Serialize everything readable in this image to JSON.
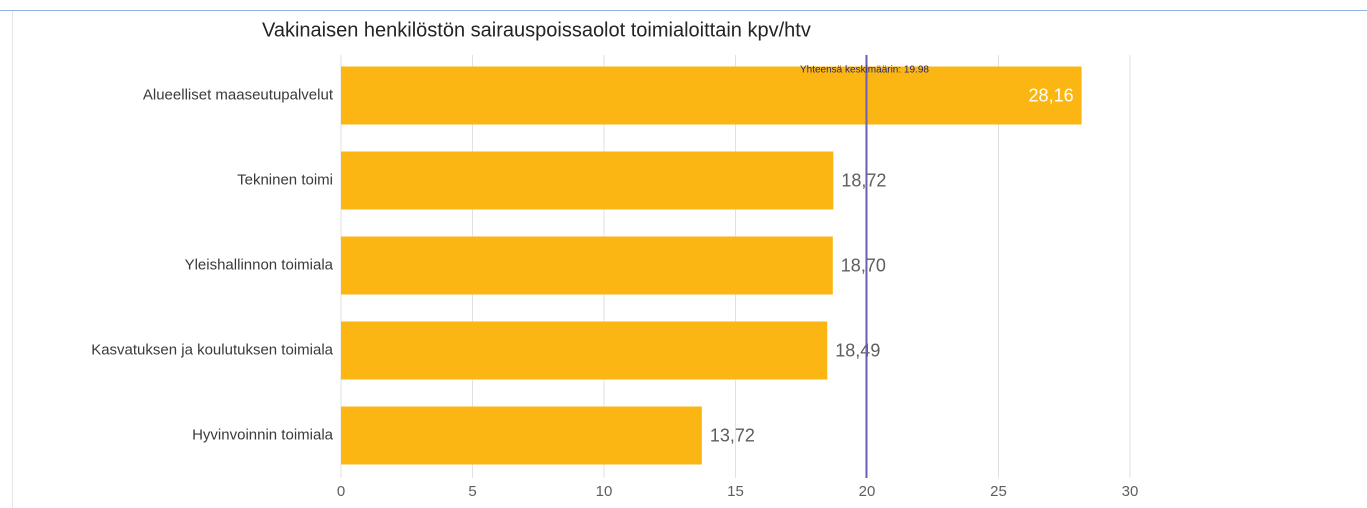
{
  "chart_data": {
    "type": "bar",
    "orientation": "horizontal",
    "title": "Vakinaisen henkilöstön sairauspoissaolot toimialoittain kpv/htv",
    "categories": [
      "Alueelliset maaseutupalvelut",
      "Tekninen toimi",
      "Yleishallinnon toimiala",
      "Kasvatuksen ja koulutuksen toimiala",
      "Hyvinvoinnin toimiala"
    ],
    "values": [
      28.16,
      18.72,
      18.7,
      18.49,
      13.72
    ],
    "value_labels": [
      "28,16",
      "18,72",
      "18,70",
      "18,49",
      "13,72"
    ],
    "color": "#fbb614",
    "xlim": [
      0,
      30
    ],
    "xticks": [
      0,
      5,
      10,
      15,
      20,
      25,
      30
    ],
    "grid": true,
    "reference_line": {
      "value": 19.98,
      "label": "Yhteensä keskimäärin: 19.98",
      "color": "#6b5fb5"
    }
  }
}
